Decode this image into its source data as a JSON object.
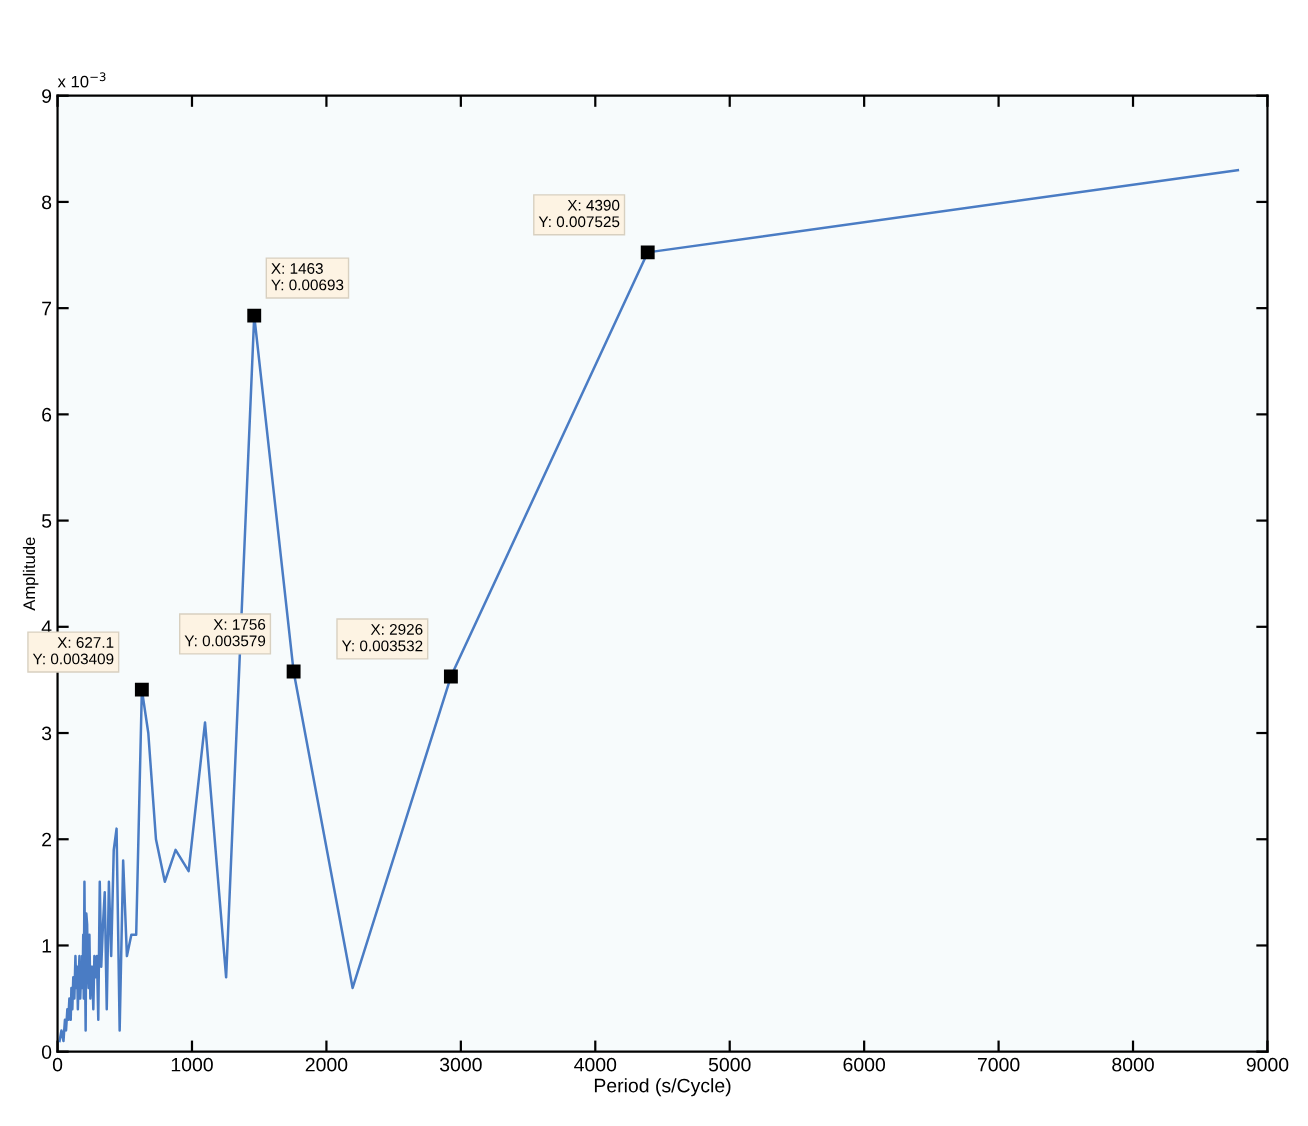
{
  "chart_data": {
    "type": "line",
    "xlabel": "Period (s/Cycle)",
    "ylabel": "Amplitude",
    "x": [
      15,
      29,
      44,
      55,
      63,
      73,
      80,
      88,
      98,
      103,
      110,
      117,
      125,
      133,
      139,
      146,
      151,
      157,
      163,
      169,
      176,
      179,
      183,
      187,
      191,
      195,
      200,
      204,
      209,
      214,
      220,
      225,
      231,
      237,
      244,
      251,
      258,
      266,
      274,
      283,
      293,
      303,
      314,
      325,
      338,
      351,
      366,
      382,
      399,
      418,
      439,
      462,
      488,
      516,
      549,
      585,
      627.1,
      675,
      732,
      798,
      878,
      975,
      1097,
      1254,
      1463,
      1756,
      2195,
      2926,
      4390,
      8780
    ],
    "series": [
      {
        "color": "#4a7cc4",
        "values": [
          0.1,
          0.2,
          0.1,
          0.3,
          0.2,
          0.4,
          0.3,
          0.5,
          0.3,
          0.6,
          0.4,
          0.7,
          0.5,
          0.9,
          0.6,
          0.8,
          0.4,
          0.7,
          0.9,
          0.5,
          0.8,
          0.6,
          0.9,
          0.7,
          1.1,
          0.5,
          1.6,
          0.9,
          0.2,
          1.3,
          1.2,
          0.8,
          0.6,
          1.1,
          0.5,
          0.8,
          0.8,
          0.4,
          0.9,
          0.7,
          0.9,
          0.3,
          1.6,
          0.8,
          1.2,
          1.5,
          0.4,
          1.6,
          0.9,
          1.9,
          2.1,
          0.2,
          1.8,
          0.9,
          1.1,
          1.1,
          3.409,
          3.0,
          2.0,
          1.6,
          1.9,
          1.7,
          3.1,
          0.7,
          6.93,
          3.579,
          0.6,
          3.532,
          7.525,
          8.3
        ]
      }
    ],
    "xlim": [
      0,
      9000
    ],
    "xticks": [
      0,
      1000,
      2000,
      3000,
      4000,
      5000,
      6000,
      7000,
      8000,
      9000
    ],
    "ylim": [
      0,
      9
    ],
    "yticks": [
      0,
      1,
      2,
      3,
      4,
      5,
      6,
      7,
      8,
      9
    ],
    "annotations": [
      "x 10$^{−3}$",
      {
        "text": "X: 627.1\nY: 0.003409",
        "x": 627.1,
        "y": 3.409
      },
      {
        "text": "X: 1463\nY: 0.00693",
        "x": 1463,
        "y": 6.93
      },
      {
        "text": "X: 1756\nY: 0.003579",
        "x": 1756,
        "y": 3.579
      },
      {
        "text": "X: 2926\nY: 0.003532",
        "x": 2926,
        "y": 3.532
      },
      {
        "text": "X: 4390\nY: 0.007525",
        "x": 4390,
        "y": 7.525
      }
    ],
    "grid": false,
    "legend": false,
    "marker": "none",
    "line_style": "solid"
  }
}
